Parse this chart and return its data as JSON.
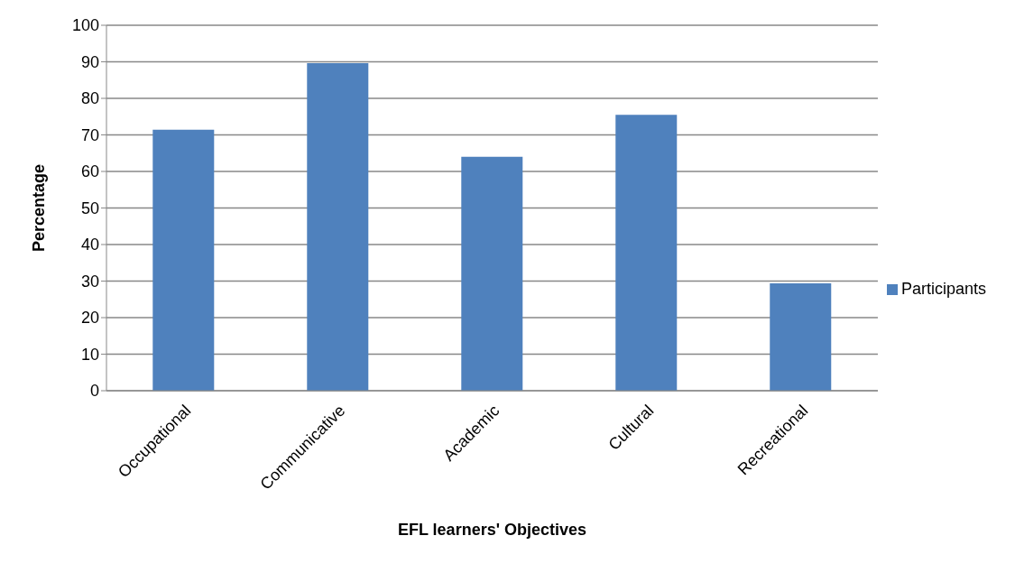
{
  "chart_data": {
    "type": "bar",
    "xlabel": "EFL learners' Objectives",
    "ylabel": "Percentage",
    "categories": [
      "Occupational",
      "Communicative",
      "Academic",
      "Cultural",
      "Recreational"
    ],
    "series": [
      {
        "name": "Participants",
        "color": "#4f81bd",
        "values": [
          71.4,
          89.6,
          64.0,
          75.5,
          29.4
        ]
      }
    ],
    "ylim": [
      0,
      100
    ],
    "yticks": [
      0,
      10,
      20,
      30,
      40,
      50,
      60,
      70,
      80,
      90,
      100
    ],
    "grid": "y",
    "legend": "right"
  }
}
